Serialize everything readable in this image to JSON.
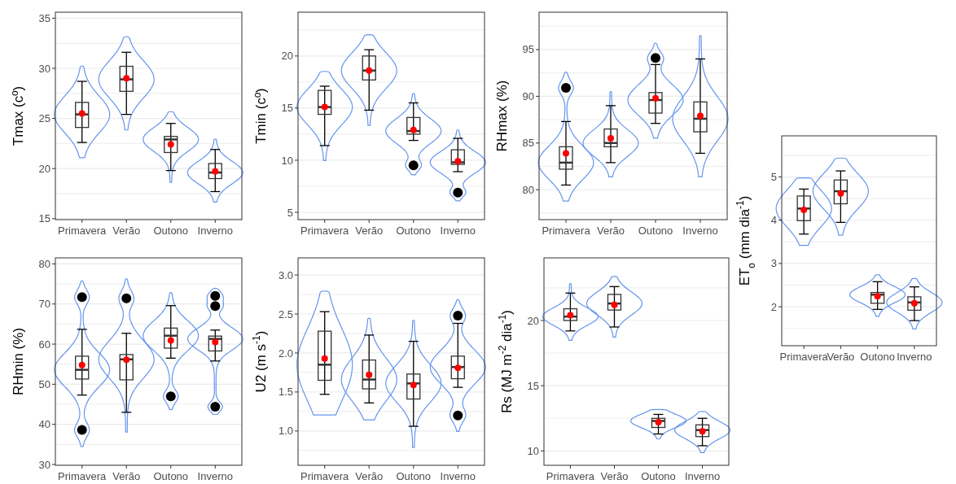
{
  "chart_data": [
    {
      "type": "box",
      "ylabel": "Tmax (cº)",
      "categories": [
        "Primavera",
        "Verão",
        "Outono",
        "Inverno"
      ],
      "ylim": [
        14.9,
        35.6
      ],
      "yticks": [
        15,
        {
          "value": 17.5,
          "label": null
        },
        20,
        {
          "value": 22.5,
          "label": null
        },
        25,
        {
          "value": 27.5,
          "label": null
        },
        30,
        {
          "value": 32.5,
          "label": null
        },
        35
      ],
      "grid": true,
      "boxes": [
        {
          "low": 22.6,
          "q1": 24.1,
          "median": 25.4,
          "q3": 26.6,
          "high": 28.7,
          "mean": 25.5
        },
        {
          "low": 25.4,
          "q1": 27.7,
          "median": 28.9,
          "q3": 30.2,
          "high": 31.6,
          "mean": 29.0
        },
        {
          "low": 19.8,
          "q1": 21.6,
          "median": 22.9,
          "q3": 23.2,
          "high": 24.5,
          "mean": 22.4
        },
        {
          "low": 17.7,
          "q1": 19.0,
          "median": 19.6,
          "q3": 20.5,
          "high": 21.9,
          "mean": 19.7
        }
      ]
    },
    {
      "type": "box",
      "ylabel": "Tmin (cº)",
      "categories": [
        "Primavera",
        "Verão",
        "Outono",
        "Inverno"
      ],
      "ylim": [
        4.3,
        24.2
      ],
      "yticks": [
        5,
        {
          "value": 7.5,
          "label": null
        },
        10,
        {
          "value": 12.5,
          "label": null
        },
        15,
        {
          "value": 17.5,
          "label": null
        },
        20,
        {
          "value": 22.5,
          "label": null
        }
      ],
      "grid": true,
      "boxes": [
        {
          "low": 11.4,
          "q1": 14.4,
          "median": 15.1,
          "q3": 16.7,
          "high": 17.1,
          "mean": 15.1
        },
        {
          "low": 14.8,
          "q1": 17.7,
          "median": 18.6,
          "q3": 20.0,
          "high": 20.6,
          "mean": 18.6
        },
        {
          "low": 11.9,
          "q1": 12.5,
          "median": 12.8,
          "q3": 14.1,
          "high": 15.5,
          "mean": 12.9,
          "outliers": [
            9.5
          ]
        },
        {
          "low": 8.9,
          "q1": 9.6,
          "median": 9.8,
          "q3": 11.0,
          "high": 12.1,
          "mean": 9.9,
          "outliers": [
            6.9
          ]
        }
      ]
    },
    {
      "type": "box",
      "ylabel": "RHmax (%)",
      "categories": [
        "Primavera",
        "Verão",
        "Outono",
        "Inverno"
      ],
      "ylim": [
        76.8,
        99.0
      ],
      "yticks": [
        {
          "value": 77.5,
          "label": null
        },
        80,
        {
          "value": 82.5,
          "label": null
        },
        85,
        {
          "value": 87.5,
          "label": null
        },
        90,
        {
          "value": 92.5,
          "label": null
        },
        95,
        {
          "value": 97.5,
          "label": null
        }
      ],
      "grid": true,
      "boxes": [
        {
          "low": 80.5,
          "q1": 82.2,
          "median": 82.9,
          "q3": 84.6,
          "high": 87.3,
          "mean": 83.9,
          "outliers": [
            90.9
          ]
        },
        {
          "low": 82.9,
          "q1": 84.6,
          "median": 85.0,
          "q3": 86.5,
          "high": 89.0,
          "mean": 85.5
        },
        {
          "low": 87.1,
          "q1": 88.2,
          "median": 89.6,
          "q3": 90.4,
          "high": 93.4,
          "mean": 89.8,
          "outliers": [
            94.1
          ]
        },
        {
          "low": 83.9,
          "q1": 86.2,
          "median": 87.6,
          "q3": 89.4,
          "high": 94.0,
          "mean": 87.9
        }
      ]
    },
    {
      "type": "box",
      "ylabel": "ET$_{o}$ (mm dia$^{-1}$)",
      "categories": [
        "Primavera",
        "Verão",
        "Outono",
        "Inverno"
      ],
      "ylim": [
        1.1,
        5.95
      ],
      "yticks": [
        {
          "value": 1.5,
          "label": null
        },
        2,
        {
          "value": 2.5,
          "label": null
        },
        3,
        {
          "value": 3.5,
          "label": null
        },
        4,
        {
          "value": 4.5,
          "label": null
        },
        5,
        {
          "value": 5.5,
          "label": null
        }
      ],
      "grid": true,
      "boxes": [
        {
          "low": 3.68,
          "q1": 3.99,
          "median": 4.27,
          "q3": 4.56,
          "high": 4.72,
          "mean": 4.24
        },
        {
          "low": 3.95,
          "q1": 4.38,
          "median": 4.67,
          "q3": 4.93,
          "high": 5.14,
          "mean": 4.62
        },
        {
          "low": 1.94,
          "q1": 2.08,
          "median": 2.28,
          "q3": 2.33,
          "high": 2.58,
          "mean": 2.24
        },
        {
          "low": 1.68,
          "q1": 1.92,
          "median": 2.1,
          "q3": 2.23,
          "high": 2.46,
          "mean": 2.08
        }
      ]
    },
    {
      "type": "box",
      "ylabel": "RHmin (%)",
      "categories": [
        "Primavera",
        "Verão",
        "Outono",
        "Inverno"
      ],
      "ylim": [
        29.8,
        81.5
      ],
      "yticks": [
        30,
        {
          "value": 35,
          "label": null
        },
        40,
        {
          "value": 45,
          "label": null
        },
        50,
        {
          "value": 55,
          "label": null
        },
        60,
        {
          "value": 65,
          "label": null
        },
        70,
        {
          "value": 75,
          "label": null
        },
        80
      ],
      "grid": true,
      "boxes": [
        {
          "low": 47.3,
          "q1": 51.3,
          "median": 53.6,
          "q3": 57.0,
          "high": 63.7,
          "mean": 54.8,
          "outliers": [
            71.7,
            38.6
          ]
        },
        {
          "low": 43.0,
          "q1": 51.1,
          "median": 56.2,
          "q3": 57.4,
          "high": 62.7,
          "mean": 56.1,
          "outliers": [
            71.4
          ]
        },
        {
          "low": 56.5,
          "q1": 59.0,
          "median": 62.1,
          "q3": 64.0,
          "high": 69.6,
          "mean": 60.9,
          "outliers": [
            47.0
          ]
        },
        {
          "low": 55.8,
          "q1": 58.3,
          "median": 61.3,
          "q3": 62.0,
          "high": 63.5,
          "mean": 60.5,
          "outliers": [
            72.0,
            69.5,
            44.4
          ]
        }
      ]
    },
    {
      "type": "box",
      "ylabel": "U2 (m s$^{-1}$)",
      "categories": [
        "Primavera",
        "Verão",
        "Outono",
        "Inverno"
      ],
      "ylim": [
        0.56,
        3.22
      ],
      "yticks": [
        {
          "value": 0.75,
          "label": null
        },
        {
          "value": 1,
          "label": "1.0"
        },
        {
          "value": 1.25,
          "label": null
        },
        {
          "value": 1.5,
          "label": "1.5"
        },
        {
          "value": 1.75,
          "label": null
        },
        {
          "value": 2,
          "label": "2.0"
        },
        {
          "value": 2.25,
          "label": null
        },
        {
          "value": 2.5,
          "label": "2.5"
        },
        {
          "value": 2.75,
          "label": null
        },
        {
          "value": 3,
          "label": "3.0"
        }
      ],
      "grid": true,
      "boxes": [
        {
          "low": 1.47,
          "q1": 1.65,
          "median": 1.85,
          "q3": 2.28,
          "high": 2.53,
          "mean": 1.93
        },
        {
          "low": 1.36,
          "q1": 1.54,
          "median": 1.66,
          "q3": 1.91,
          "high": 2.23,
          "mean": 1.72
        },
        {
          "low": 1.06,
          "q1": 1.41,
          "median": 1.61,
          "q3": 1.73,
          "high": 2.15,
          "mean": 1.59
        },
        {
          "low": 1.56,
          "q1": 1.67,
          "median": 1.82,
          "q3": 1.96,
          "high": 2.38,
          "mean": 1.81,
          "outliers": [
            2.48,
            1.2
          ]
        }
      ]
    },
    {
      "type": "box",
      "ylabel": "Rs (MJ m$^{-2}$ dia$^{-1}$)",
      "categories": [
        "Primavera",
        "Verão",
        "Outono",
        "Inverno"
      ],
      "ylim": [
        8.9,
        24.8
      ],
      "yticks": [
        10,
        {
          "value": 12.5,
          "label": null
        },
        15,
        {
          "value": 17.5,
          "label": null
        },
        20,
        {
          "value": 22.5,
          "label": null
        }
      ],
      "grid": true,
      "boxes": [
        {
          "low": 19.2,
          "q1": 20.0,
          "median": 20.3,
          "q3": 20.9,
          "high": 22.1,
          "mean": 20.4
        },
        {
          "low": 19.5,
          "q1": 20.8,
          "median": 21.3,
          "q3": 22.0,
          "high": 22.6,
          "mean": 21.2
        },
        {
          "low": 11.3,
          "q1": 11.8,
          "median": 12.3,
          "q3": 12.5,
          "high": 12.8,
          "mean": 12.2
        },
        {
          "low": 10.4,
          "q1": 11.1,
          "median": 11.6,
          "q3": 12.0,
          "high": 12.5,
          "mean": 11.5
        }
      ]
    }
  ]
}
